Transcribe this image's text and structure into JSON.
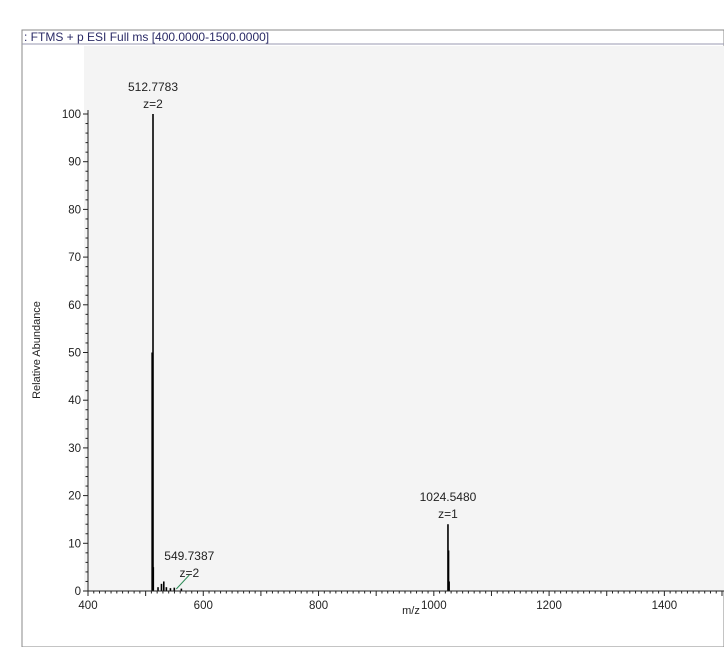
{
  "header": {
    "scan_filter": ": FTMS + p ESI Full ms [400.0000-1500.0000]"
  },
  "chart_data": {
    "type": "line",
    "xlabel": "m/z",
    "ylabel": "Relative Abundance",
    "xlim": [
      400,
      1500
    ],
    "ylim": [
      0,
      100
    ],
    "x_ticks": [
      400,
      600,
      800,
      1000,
      1200,
      1400
    ],
    "y_ticks": [
      0,
      10,
      20,
      30,
      40,
      50,
      60,
      70,
      80,
      90,
      100
    ],
    "grid": false,
    "peaks": [
      {
        "mz": 511.3,
        "intensity": 50
      },
      {
        "mz": 512.7783,
        "intensity": 100
      },
      {
        "mz": 513.3,
        "intensity": 5
      },
      {
        "mz": 521.5,
        "intensity": 0.8
      },
      {
        "mz": 527.5,
        "intensity": 1.5
      },
      {
        "mz": 531.5,
        "intensity": 2
      },
      {
        "mz": 536.0,
        "intensity": 0.8
      },
      {
        "mz": 543.0,
        "intensity": 0.6
      },
      {
        "mz": 549.7387,
        "intensity": 0.7
      },
      {
        "mz": 562.0,
        "intensity": 0.5
      },
      {
        "mz": 1024.548,
        "intensity": 14
      },
      {
        "mz": 1025.55,
        "intensity": 8.5
      },
      {
        "mz": 1026.55,
        "intensity": 2
      }
    ],
    "annotations": [
      {
        "mz_text": "512.7783",
        "charge_text": "z=2",
        "mz": 512.7783,
        "intensity": 100
      },
      {
        "mz_text": "549.7387",
        "charge_text": "z=2",
        "mz": 549.7387,
        "intensity": 0.7
      },
      {
        "mz_text": "1024.5480",
        "charge_text": "z=1",
        "mz": 1024.548,
        "intensity": 14
      }
    ]
  }
}
